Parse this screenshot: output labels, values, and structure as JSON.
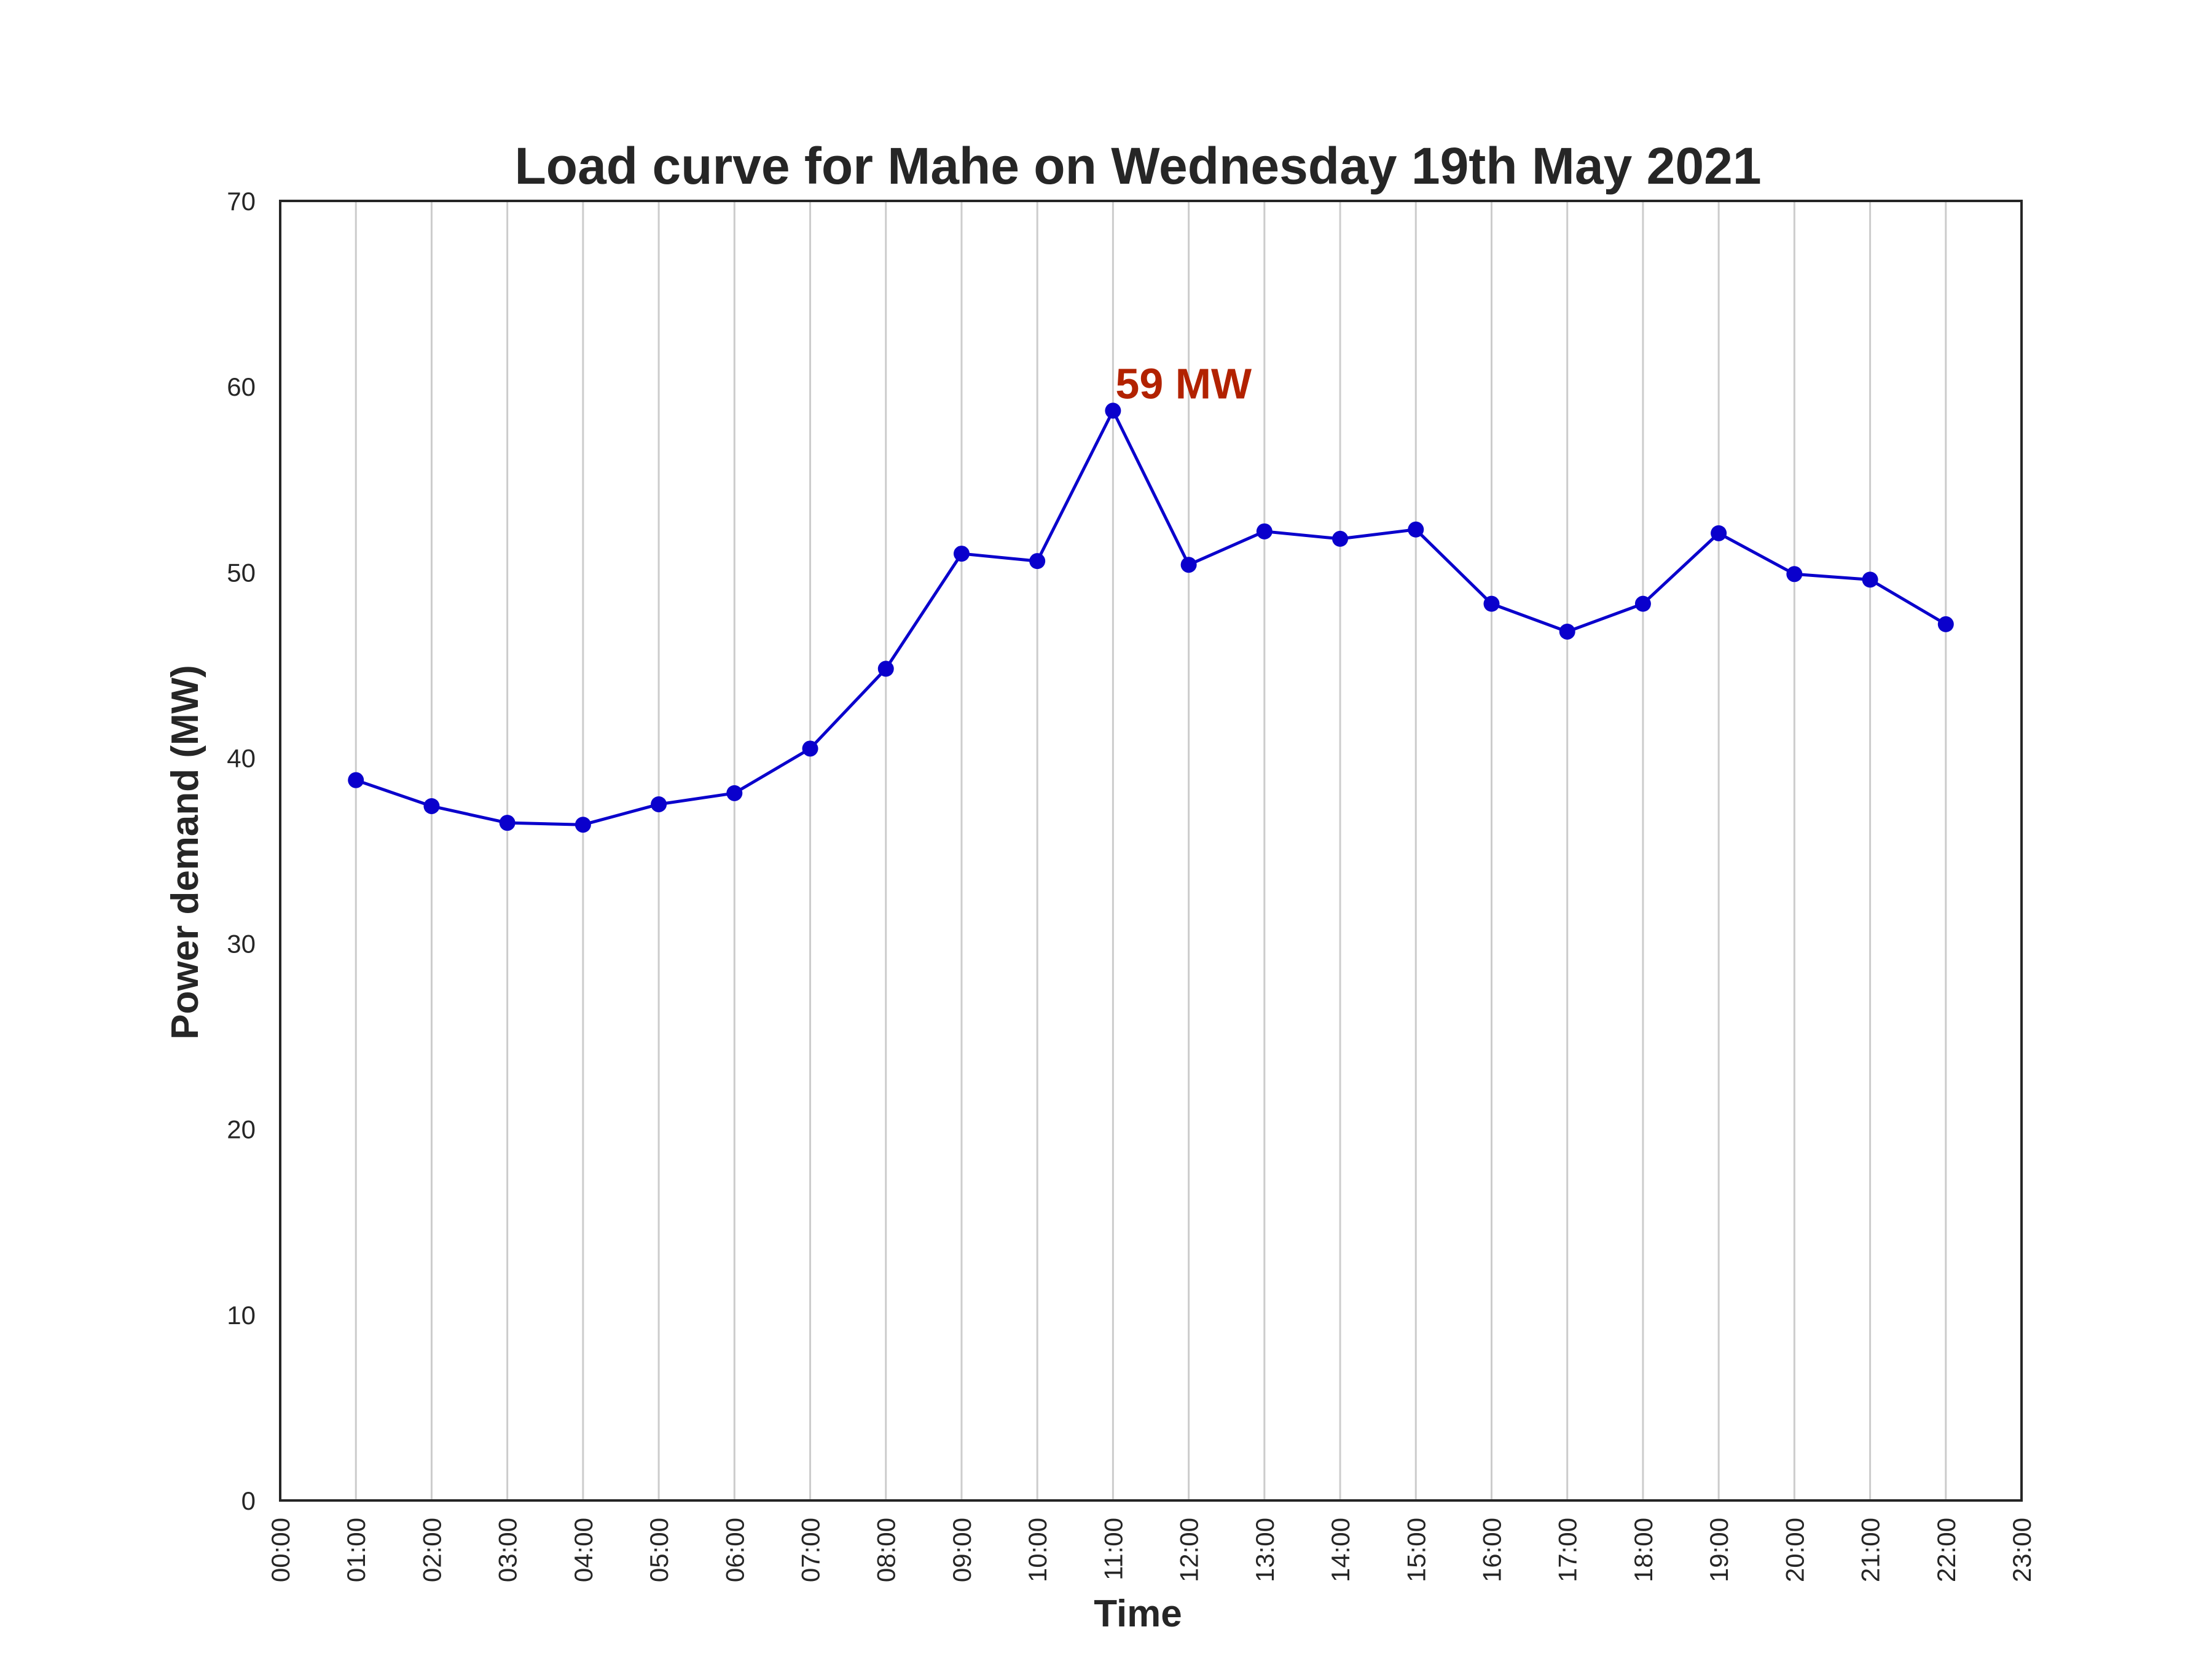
{
  "chart_data": {
    "type": "line",
    "title": "Load curve for Mahe on Wednesday 19th May 2021",
    "xlabel": "Time",
    "ylabel": "Power demand (MW)",
    "xlim": [
      "00:00",
      "23:00"
    ],
    "ylim": [
      0,
      70
    ],
    "x_ticks": [
      "00:00",
      "01:00",
      "02:00",
      "03:00",
      "04:00",
      "05:00",
      "06:00",
      "07:00",
      "08:00",
      "09:00",
      "10:00",
      "11:00",
      "12:00",
      "13:00",
      "14:00",
      "15:00",
      "16:00",
      "17:00",
      "18:00",
      "19:00",
      "20:00",
      "21:00",
      "22:00",
      "23:00"
    ],
    "y_ticks": [
      0,
      10,
      20,
      30,
      40,
      50,
      60,
      70
    ],
    "grid": "vertical",
    "series": [
      {
        "x": [
          "01:00",
          "02:00",
          "03:00",
          "04:00",
          "05:00",
          "06:00",
          "07:00",
          "08:00",
          "09:00",
          "10:00",
          "11:00",
          "12:00",
          "13:00",
          "14:00",
          "15:00",
          "16:00",
          "17:00",
          "18:00",
          "19:00",
          "20:00",
          "21:00",
          "22:00"
        ],
        "values": [
          38.8,
          37.4,
          36.5,
          36.4,
          37.5,
          38.1,
          40.5,
          44.8,
          51.0,
          50.6,
          58.7,
          50.4,
          52.2,
          51.8,
          52.3,
          48.3,
          46.8,
          48.3,
          52.1,
          49.9,
          49.6,
          47.2
        ],
        "color": "#0a00cc"
      }
    ],
    "annotations": [
      {
        "x": "11:00",
        "y": 58.7,
        "text": "59 MW",
        "color": "#b22200"
      }
    ]
  }
}
